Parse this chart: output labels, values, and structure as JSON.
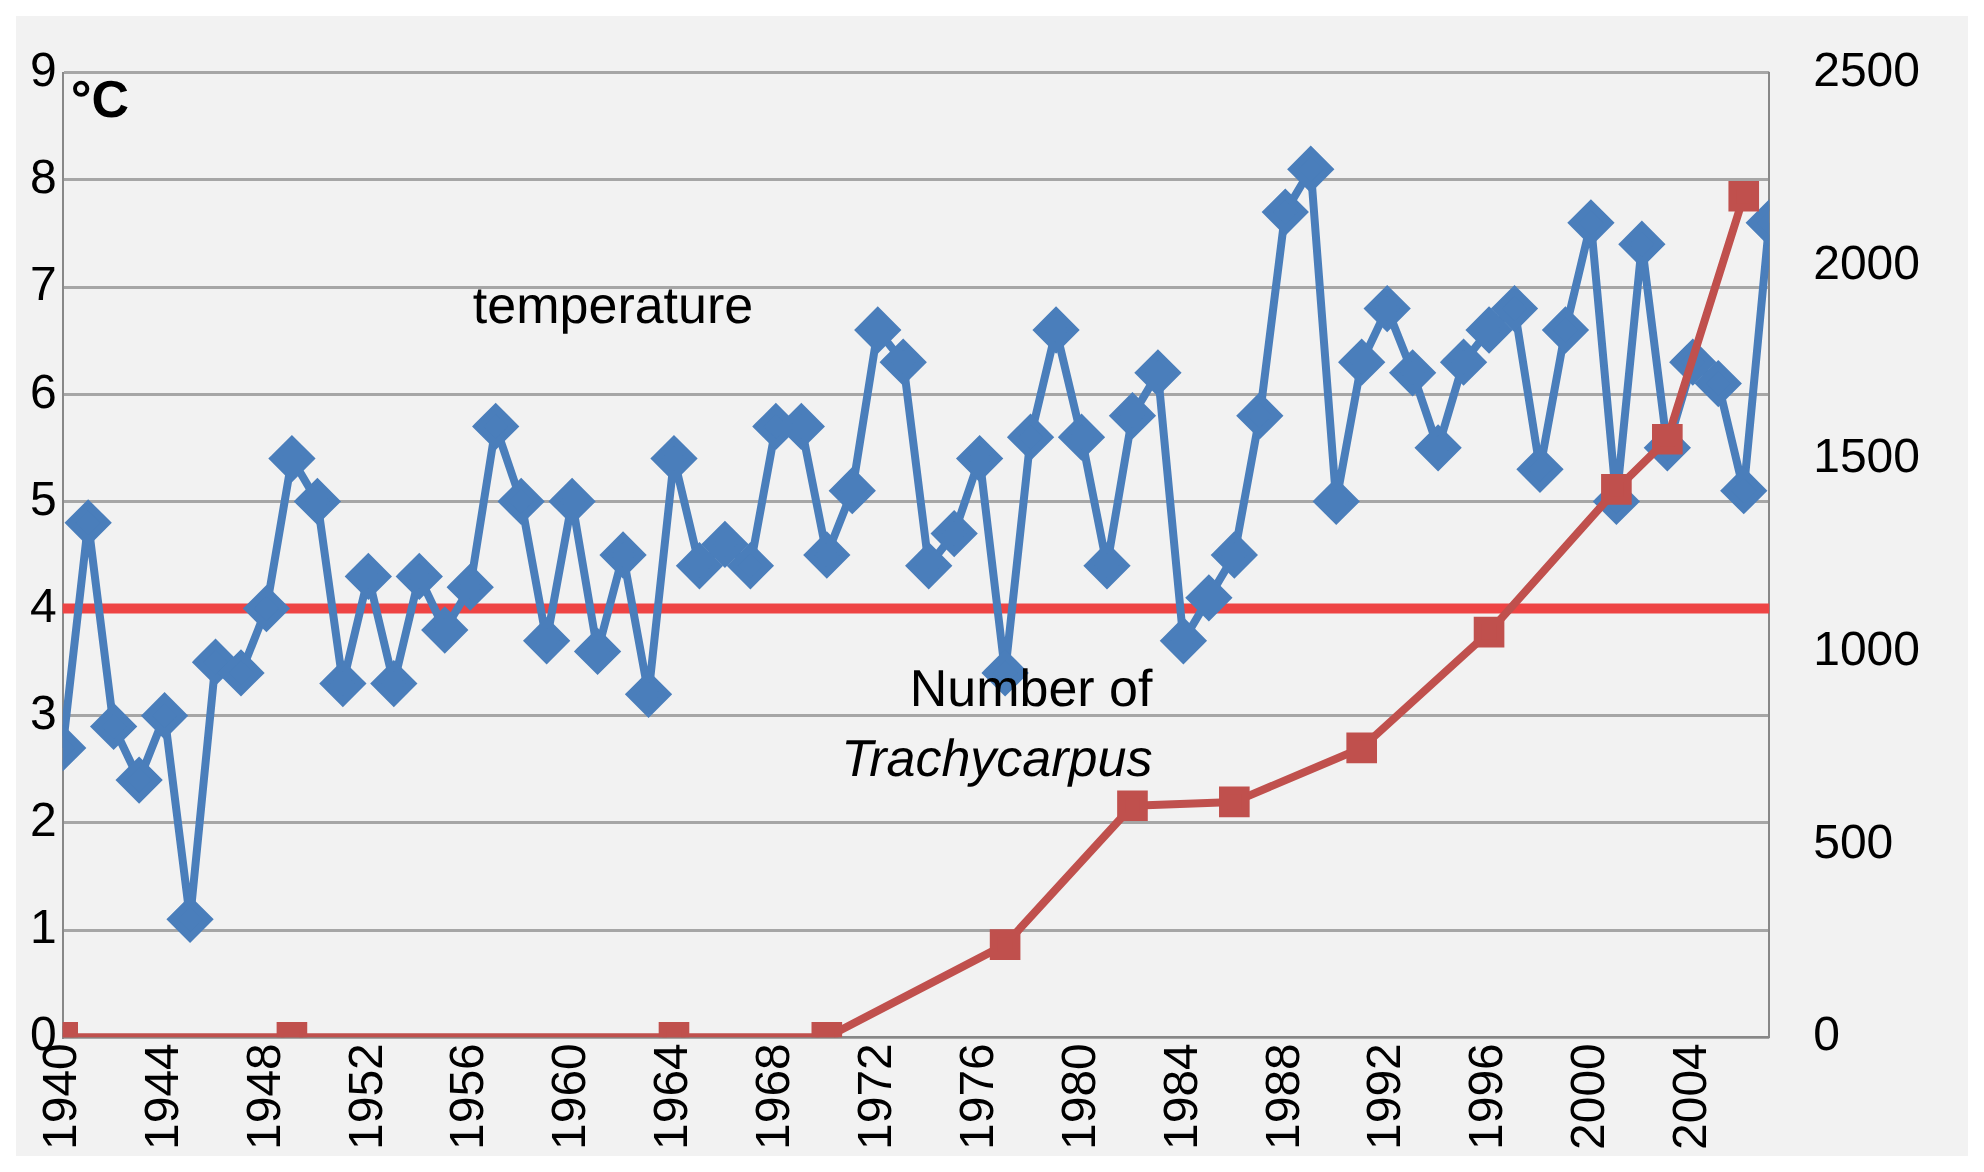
{
  "chart_data": {
    "type": "line",
    "ylabel": "°C",
    "xlim": [
      1940,
      2007
    ],
    "xticks": [
      1940,
      1944,
      1948,
      1952,
      1956,
      1960,
      1964,
      1968,
      1972,
      1976,
      1980,
      1984,
      1988,
      1992,
      1996,
      2000,
      2004
    ],
    "ylim": [
      0,
      9
    ],
    "yticks": [
      0,
      1,
      2,
      3,
      4,
      5,
      6,
      7,
      8,
      9
    ],
    "y2lim": [
      0,
      2500
    ],
    "y2ticks": [
      0,
      500,
      1000,
      1500,
      2000,
      2500
    ],
    "grid": "y",
    "legend": false,
    "ref_lines": [
      {
        "axis": "y",
        "value": 4,
        "color": "#ee4444"
      }
    ],
    "series": [
      {
        "name": "temperature",
        "color": "#4a7ebb",
        "marker": "diamond",
        "x": [
          1940,
          1941,
          1942,
          1943,
          1944,
          1945,
          1946,
          1947,
          1948,
          1949,
          1950,
          1951,
          1952,
          1953,
          1954,
          1955,
          1956,
          1957,
          1958,
          1959,
          1960,
          1961,
          1962,
          1963,
          1964,
          1965,
          1966,
          1967,
          1968,
          1969,
          1970,
          1971,
          1972,
          1973,
          1974,
          1975,
          1976,
          1977,
          1978,
          1979,
          1980,
          1981,
          1982,
          1983,
          1984,
          1985,
          1986,
          1987,
          1988,
          1989,
          1990,
          1991,
          1992,
          1993,
          1994,
          1995,
          1996,
          1997,
          1998,
          1999,
          2000,
          2001,
          2002,
          2003,
          2004,
          2005,
          2006,
          2007
        ],
        "values": [
          2.7,
          4.8,
          2.9,
          2.4,
          3.0,
          1.1,
          3.5,
          3.4,
          4.0,
          5.4,
          5.0,
          3.3,
          4.3,
          3.3,
          4.3,
          3.8,
          4.2,
          5.7,
          5.0,
          3.7,
          5.0,
          3.6,
          4.5,
          3.2,
          5.4,
          4.4,
          4.6,
          4.4,
          5.7,
          5.7,
          4.5,
          5.1,
          6.6,
          6.3,
          4.4,
          4.7,
          5.4,
          3.4,
          5.6,
          6.6,
          5.6,
          4.4,
          5.8,
          6.2,
          3.7,
          4.1,
          4.5,
          5.8,
          7.7,
          8.1,
          5.0,
          6.3,
          6.8,
          6.2,
          5.5,
          6.3,
          6.6,
          6.8,
          5.3,
          6.6,
          7.6,
          5.0,
          7.4,
          5.5,
          6.3,
          6.1,
          5.1,
          7.6
        ]
      },
      {
        "name": "Number of Trachycarpus",
        "color": "#c0504d",
        "marker": "square",
        "axis": "y2",
        "x": [
          1940,
          1949,
          1964,
          1970,
          1977,
          1982,
          1986,
          1991,
          1996,
          2001,
          2003,
          2006
        ],
        "values": [
          0,
          0,
          0,
          0,
          240,
          600,
          610,
          750,
          1050,
          1420,
          1550,
          2180
        ]
      }
    ]
  }
}
